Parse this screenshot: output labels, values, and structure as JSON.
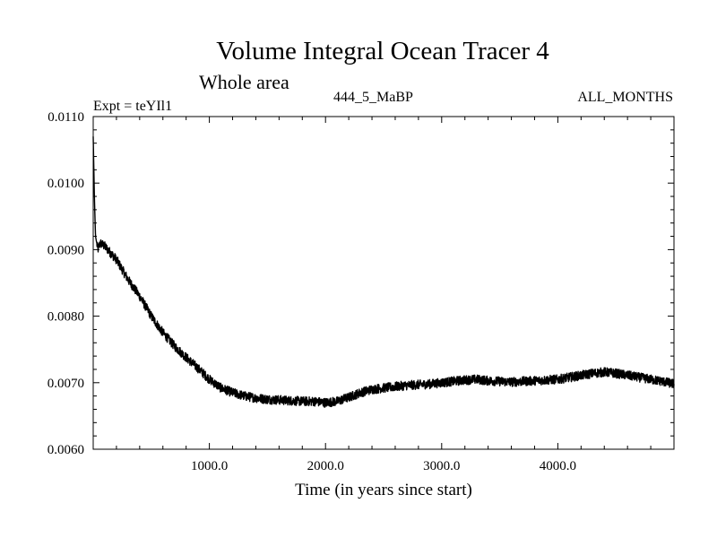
{
  "chart_data": {
    "type": "line",
    "title": "Volume Integral Ocean Tracer 4",
    "subtitle": "Whole area",
    "experiment_label": "Expt = teYIl1",
    "period_label": "444_5_MaBP",
    "months_label": "ALL_MONTHS",
    "xlabel": "Time (in years since start)",
    "ylabel": "",
    "xlim": [
      0,
      5000
    ],
    "ylim": [
      0.006,
      0.011
    ],
    "x_ticks": [
      1000,
      2000,
      3000,
      4000
    ],
    "x_tick_labels": [
      "1000.0",
      "2000.0",
      "3000.0",
      "4000.0"
    ],
    "y_ticks": [
      0.006,
      0.007,
      0.008,
      0.009,
      0.01,
      0.011
    ],
    "y_tick_labels": [
      "0.0060",
      "0.0070",
      "0.0080",
      "0.0090",
      "0.0100",
      "0.0110"
    ],
    "grid": false,
    "noise_amplitude": 7e-05,
    "series": [
      {
        "name": "Ocean Tracer 4",
        "color": "#000000",
        "x": [
          0,
          10,
          20,
          40,
          60,
          100,
          200,
          300,
          400,
          500,
          600,
          700,
          800,
          900,
          1000,
          1100,
          1200,
          1300,
          1400,
          1500,
          1600,
          1700,
          1800,
          1900,
          2000,
          2100,
          2200,
          2300,
          2400,
          2500,
          2600,
          2700,
          2800,
          2900,
          3000,
          3100,
          3200,
          3300,
          3400,
          3500,
          3600,
          3700,
          3800,
          3900,
          4000,
          4100,
          4200,
          4300,
          4400,
          4500,
          4600,
          4700,
          4800,
          4900,
          5000
        ],
        "values": [
          0.0107,
          0.0098,
          0.0092,
          0.009,
          0.0091,
          0.00905,
          0.00885,
          0.00855,
          0.0083,
          0.008,
          0.00775,
          0.00755,
          0.00738,
          0.00722,
          0.00705,
          0.00692,
          0.00685,
          0.0068,
          0.00677,
          0.00675,
          0.00674,
          0.00673,
          0.00672,
          0.00672,
          0.0067,
          0.00672,
          0.00678,
          0.00685,
          0.0069,
          0.00692,
          0.00694,
          0.00696,
          0.00697,
          0.00698,
          0.007,
          0.00702,
          0.00704,
          0.00705,
          0.00703,
          0.00702,
          0.00701,
          0.00702,
          0.00703,
          0.00704,
          0.00705,
          0.00708,
          0.00711,
          0.00714,
          0.00716,
          0.00714,
          0.00711,
          0.00708,
          0.00705,
          0.00702,
          0.00698
        ]
      }
    ]
  }
}
